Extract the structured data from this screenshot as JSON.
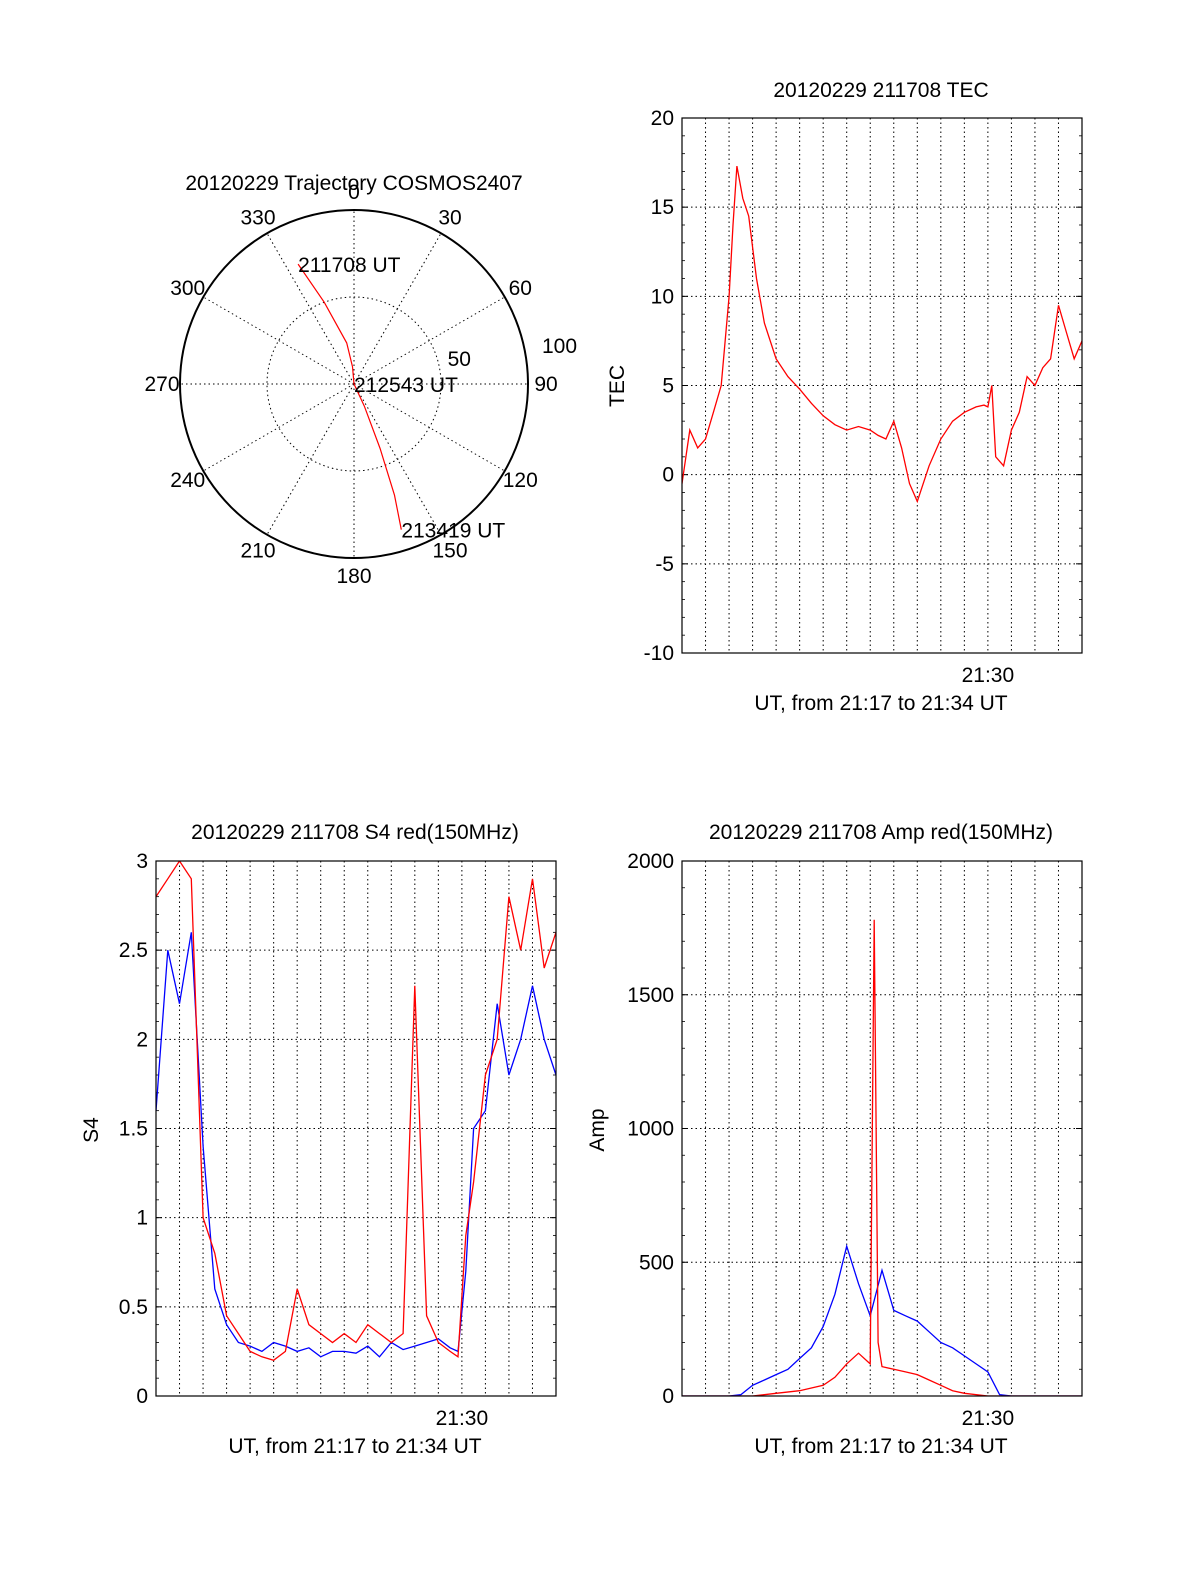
{
  "chart_data": [
    {
      "type": "polar",
      "title": "20120229 Trajectory COSMOS2407",
      "angle_labels": [
        "0",
        "30",
        "60",
        "90",
        "120",
        "150",
        "180",
        "210",
        "240",
        "270",
        "300",
        "330"
      ],
      "radius_labels": [
        "50",
        "100"
      ],
      "rlim": [
        0,
        100
      ],
      "grid": true,
      "track_color": "#ff0000",
      "track": [
        {
          "az": 335,
          "r": 76
        },
        {
          "az": 340,
          "r": 50
        },
        {
          "az": 350,
          "r": 24
        },
        {
          "az": 355,
          "r": 10
        },
        {
          "az": 0,
          "r": 0
        },
        {
          "az": 155,
          "r": 14
        },
        {
          "az": 158,
          "r": 40
        },
        {
          "az": 160,
          "r": 68
        },
        {
          "az": 162,
          "r": 88
        }
      ],
      "annotations": [
        {
          "text": "211708 UT",
          "az": 335,
          "r": 76
        },
        {
          "text": "212543 UT",
          "az": 0,
          "r": 0
        },
        {
          "text": "213419 UT",
          "az": 162,
          "r": 88
        }
      ]
    },
    {
      "type": "line",
      "title": "20120229 211708 TEC",
      "xlabel": "UT, from 21:17 to 21:34 UT",
      "ylabel": "TEC",
      "xlim": [
        "21:17",
        "21:34"
      ],
      "ylim": [
        -10,
        20
      ],
      "yticks": [
        "-10",
        "-5",
        "0",
        "5",
        "10",
        "15",
        "20"
      ],
      "xticks": [
        "21:30"
      ],
      "grid": true,
      "series": [
        {
          "color": "#ff0000",
          "x": [
            "21:17:00",
            "21:17:20",
            "21:17:40",
            "21:18:00",
            "21:18:20",
            "21:18:40",
            "21:19:00",
            "21:19:10",
            "21:19:20",
            "21:19:35",
            "21:19:50",
            "21:20:10",
            "21:20:30",
            "21:21:00",
            "21:21:30",
            "21:22:00",
            "21:22:30",
            "21:23:00",
            "21:23:30",
            "21:24:00",
            "21:24:30",
            "21:25:00",
            "21:25:20",
            "21:25:40",
            "21:26:00",
            "21:26:20",
            "21:26:40",
            "21:27:00",
            "21:27:30",
            "21:28:00",
            "21:28:30",
            "21:29:00",
            "21:29:30",
            "21:29:50",
            "21:30:00",
            "21:30:10",
            "21:30:20",
            "21:30:40",
            "21:31:00",
            "21:31:20",
            "21:31:40",
            "21:32:00",
            "21:32:20",
            "21:32:40",
            "21:33:00",
            "21:33:20",
            "21:33:40",
            "21:34:00"
          ],
          "values": [
            -0.5,
            2.5,
            1.5,
            2,
            3.5,
            5,
            10,
            14,
            17.3,
            15.5,
            14.5,
            11,
            8.5,
            6.5,
            5.5,
            4.8,
            4,
            3.3,
            2.8,
            2.5,
            2.7,
            2.5,
            2.2,
            2.0,
            3.0,
            1.5,
            -0.5,
            -1.5,
            0.5,
            2.0,
            3.0,
            3.5,
            3.8,
            3.9,
            3.8,
            5.0,
            1.0,
            0.5,
            2.5,
            3.5,
            5.5,
            5.0,
            6.0,
            6.5,
            9.5,
            8.0,
            6.5,
            7.5
          ]
        }
      ]
    },
    {
      "type": "line",
      "title": "20120229 211708 S4 red(150MHz)",
      "xlabel": "UT, from 21:17 to 21:34 UT",
      "ylabel": "S4",
      "xlim": [
        "21:17",
        "21:34"
      ],
      "ylim": [
        0,
        3
      ],
      "yticks": [
        "0",
        "0.5",
        "1",
        "1.5",
        "2",
        "2.5",
        "3"
      ],
      "xticks": [
        "21:30"
      ],
      "grid": true,
      "series": [
        {
          "color": "#0000ff",
          "x": [
            "21:17:00",
            "21:17:30",
            "21:18:00",
            "21:18:30",
            "21:19:00",
            "21:19:30",
            "21:20:00",
            "21:20:30",
            "21:21:00",
            "21:21:30",
            "21:22:00",
            "21:22:30",
            "21:23:00",
            "21:23:30",
            "21:24:00",
            "21:24:30",
            "21:25:00",
            "21:25:30",
            "21:26:00",
            "21:26:30",
            "21:27:00",
            "21:27:30",
            "21:28:00",
            "21:28:30",
            "21:29:00",
            "21:29:30",
            "21:29:50",
            "21:30:10",
            "21:30:30",
            "21:31:00",
            "21:31:30",
            "21:32:00",
            "21:32:30",
            "21:33:00",
            "21:33:30",
            "21:34:00"
          ],
          "values": [
            1.6,
            2.5,
            2.2,
            2.6,
            1.4,
            0.6,
            0.4,
            0.3,
            0.28,
            0.25,
            0.3,
            0.28,
            0.25,
            0.27,
            0.22,
            0.25,
            0.25,
            0.24,
            0.28,
            0.22,
            0.3,
            0.26,
            0.28,
            0.3,
            0.32,
            0.27,
            0.25,
            0.7,
            1.5,
            1.6,
            2.2,
            1.8,
            2.0,
            2.3,
            2.0,
            1.8
          ]
        },
        {
          "color": "#ff0000",
          "x": [
            "21:17:00",
            "21:17:30",
            "21:18:00",
            "21:18:30",
            "21:19:00",
            "21:19:30",
            "21:20:00",
            "21:20:30",
            "21:21:00",
            "21:21:30",
            "21:22:00",
            "21:22:30",
            "21:23:00",
            "21:23:30",
            "21:24:00",
            "21:24:30",
            "21:25:00",
            "21:25:30",
            "21:26:00",
            "21:26:30",
            "21:27:00",
            "21:27:30",
            "21:28:00",
            "21:28:30",
            "21:29:00",
            "21:29:30",
            "21:29:50",
            "21:30:10",
            "21:30:30",
            "21:31:00",
            "21:31:30",
            "21:32:00",
            "21:32:30",
            "21:33:00",
            "21:33:30",
            "21:34:00"
          ],
          "values": [
            2.8,
            2.9,
            3.0,
            2.9,
            1.0,
            0.8,
            0.45,
            0.35,
            0.25,
            0.22,
            0.2,
            0.25,
            0.6,
            0.4,
            0.35,
            0.3,
            0.35,
            0.3,
            0.4,
            0.35,
            0.3,
            0.35,
            2.3,
            0.45,
            0.3,
            0.25,
            0.22,
            0.9,
            1.2,
            1.8,
            2.0,
            2.8,
            2.5,
            2.9,
            2.4,
            2.6
          ]
        }
      ]
    },
    {
      "type": "line",
      "title": "20120229 211708 Amp red(150MHz)",
      "xlabel": "UT, from 21:17 to 21:34 UT",
      "ylabel": "Amp",
      "xlim": [
        "21:17",
        "21:34"
      ],
      "ylim": [
        0,
        2000
      ],
      "yticks": [
        "0",
        "500",
        "1000",
        "1500",
        "2000"
      ],
      "xticks": [
        "21:30"
      ],
      "grid": true,
      "series": [
        {
          "color": "#0000ff",
          "x": [
            "21:17:00",
            "21:18:00",
            "21:19:00",
            "21:19:30",
            "21:20:00",
            "21:20:30",
            "21:21:00",
            "21:21:30",
            "21:22:00",
            "21:22:30",
            "21:23:00",
            "21:23:30",
            "21:24:00",
            "21:24:30",
            "21:25:00",
            "21:25:30",
            "21:26:00",
            "21:26:30",
            "21:27:00",
            "21:27:30",
            "21:28:00",
            "21:28:30",
            "21:29:00",
            "21:29:30",
            "21:30:00",
            "21:30:30",
            "21:31:00",
            "21:32:00",
            "21:33:00",
            "21:34:00"
          ],
          "values": [
            0,
            0,
            0,
            5,
            40,
            60,
            80,
            100,
            140,
            180,
            260,
            380,
            560,
            420,
            300,
            470,
            320,
            300,
            280,
            240,
            200,
            180,
            150,
            120,
            90,
            5,
            0,
            0,
            0,
            0
          ]
        },
        {
          "color": "#ff0000",
          "x": [
            "21:17:00",
            "21:18:00",
            "21:19:00",
            "21:20:00",
            "21:21:00",
            "21:22:00",
            "21:23:00",
            "21:23:30",
            "21:24:00",
            "21:24:30",
            "21:25:00",
            "21:25:10",
            "21:25:20",
            "21:25:30",
            "21:26:00",
            "21:26:30",
            "21:27:00",
            "21:27:30",
            "21:28:00",
            "21:28:30",
            "21:29:00",
            "21:30:00",
            "21:31:00",
            "21:34:00"
          ],
          "values": [
            0,
            0,
            0,
            0,
            10,
            20,
            40,
            70,
            120,
            160,
            120,
            1780,
            200,
            110,
            100,
            90,
            80,
            60,
            40,
            20,
            10,
            0,
            0,
            0
          ]
        }
      ]
    }
  ]
}
